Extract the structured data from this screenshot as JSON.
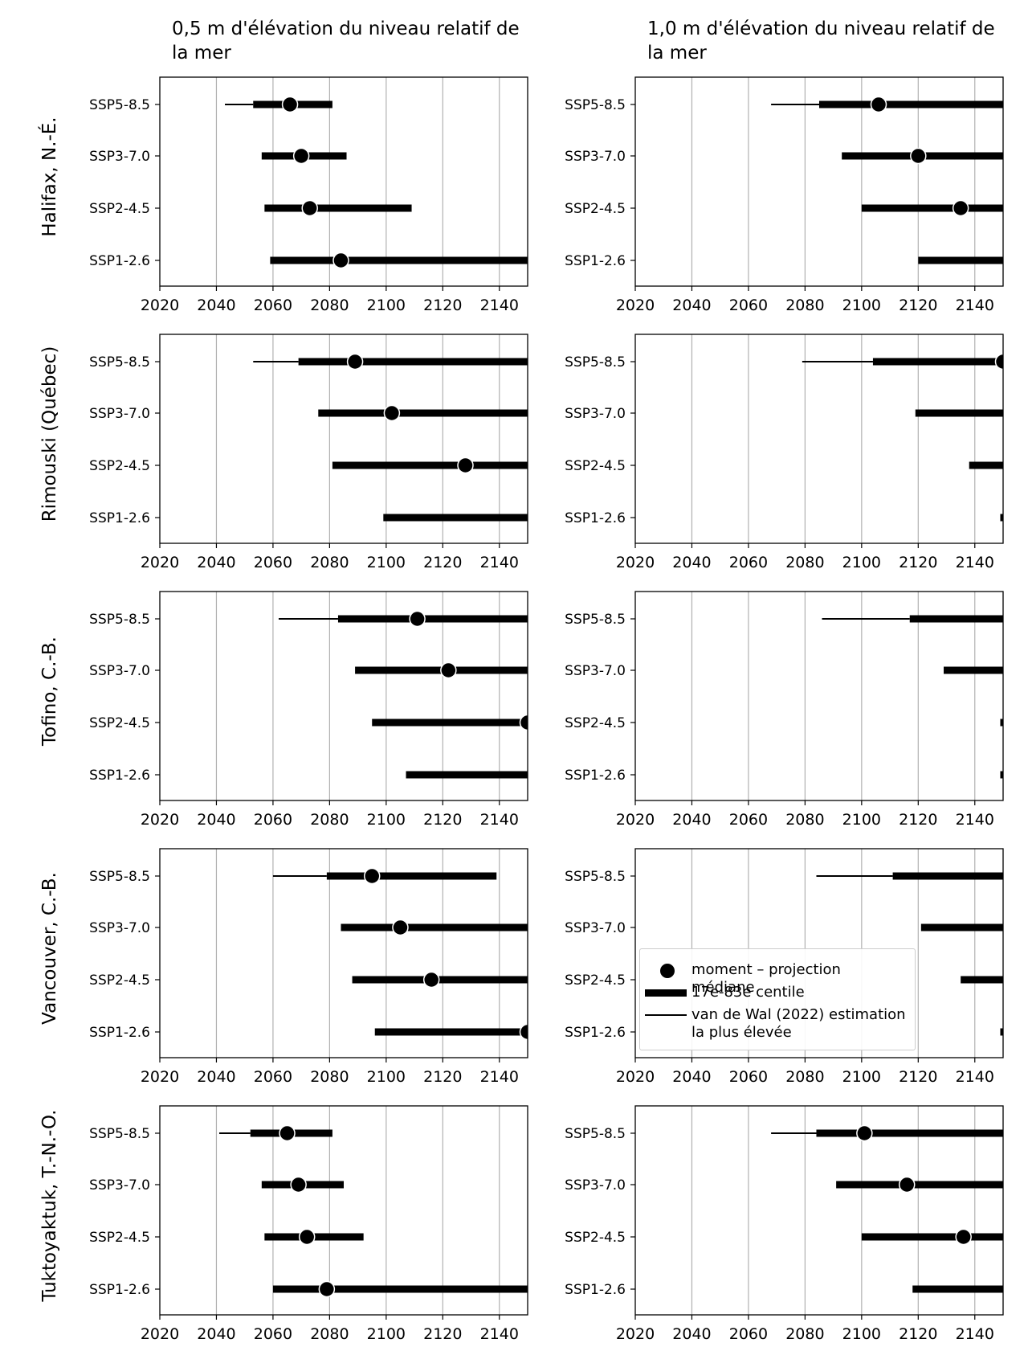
{
  "column_titles": [
    "0,5 m d'élévation du niveau relatif de la mer",
    "1,0 m d'élévation du niveau relatif de la mer"
  ],
  "row_titles": [
    "Halifax, N.-É.",
    "Rimouski (Québec)",
    "Tofino, C.-B.",
    "Vancouver, C.-B.",
    "Tuktoyaktuk, T.-N.-O."
  ],
  "legend": {
    "median": "moment – projection médiane",
    "likely": "17e-83e centile",
    "high": "van de Wal (2022) estimation la plus élevée"
  },
  "chart_data": {
    "type": "range-dot",
    "x_ticks": [
      "2020",
      "2040",
      "2060",
      "2080",
      "2100",
      "2120",
      "2140"
    ],
    "xlim": [
      2020,
      2150
    ],
    "scenarios": [
      "SSP5-8.5",
      "SSP3-7.0",
      "SSP2-4.5",
      "SSP1-2.6"
    ],
    "grid": "vertical",
    "legend_position": "inside (Vancouver, 1,0 m panel)",
    "panels": [
      {
        "location": "Halifax, N.-É.",
        "slr": "0,5 m",
        "scenarios": [
          {
            "scenario": "SSP5-8.5",
            "median": 2066,
            "p17": 2053,
            "p83": 2081,
            "high_est": 2043
          },
          {
            "scenario": "SSP3-7.0",
            "median": 2070,
            "p17": 2056,
            "p83": 2086
          },
          {
            "scenario": "SSP2-4.5",
            "median": 2073,
            "p17": 2057,
            "p83": 2109
          },
          {
            "scenario": "SSP1-2.6",
            "median": 2084,
            "p17": 2059,
            "p83": 2150
          }
        ]
      },
      {
        "location": "Halifax, N.-É.",
        "slr": "1,0 m",
        "scenarios": [
          {
            "scenario": "SSP5-8.5",
            "median": 2106,
            "p17": 2085,
            "p83": 2150,
            "high_est": 2068
          },
          {
            "scenario": "SSP3-7.0",
            "median": 2120,
            "p17": 2093,
            "p83": 2150
          },
          {
            "scenario": "SSP2-4.5",
            "median": 2135,
            "p17": 2100,
            "p83": 2150
          },
          {
            "scenario": "SSP1-2.6",
            "median": null,
            "p17": 2120,
            "p83": 2150
          }
        ]
      },
      {
        "location": "Rimouski (Québec)",
        "slr": "0,5 m",
        "scenarios": [
          {
            "scenario": "SSP5-8.5",
            "median": 2089,
            "p17": 2069,
            "p83": 2150,
            "high_est": 2053
          },
          {
            "scenario": "SSP3-7.0",
            "median": 2102,
            "p17": 2076,
            "p83": 2150
          },
          {
            "scenario": "SSP2-4.5",
            "median": 2128,
            "p17": 2081,
            "p83": 2150
          },
          {
            "scenario": "SSP1-2.6",
            "median": null,
            "p17": 2099,
            "p83": 2150
          }
        ]
      },
      {
        "location": "Rimouski (Québec)",
        "slr": "1,0 m",
        "scenarios": [
          {
            "scenario": "SSP5-8.5",
            "median": 2150,
            "p17": 2104,
            "p83": 2150,
            "high_est": 2079
          },
          {
            "scenario": "SSP3-7.0",
            "median": null,
            "p17": 2119,
            "p83": 2150
          },
          {
            "scenario": "SSP2-4.5",
            "median": null,
            "p17": 2138,
            "p83": 2150
          },
          {
            "scenario": "SSP1-2.6",
            "median": null,
            "p17": 2149,
            "p83": 2150
          }
        ]
      },
      {
        "location": "Tofino, C.-B.",
        "slr": "0,5 m",
        "scenarios": [
          {
            "scenario": "SSP5-8.5",
            "median": 2111,
            "p17": 2083,
            "p83": 2150,
            "high_est": 2062
          },
          {
            "scenario": "SSP3-7.0",
            "median": 2122,
            "p17": 2089,
            "p83": 2150
          },
          {
            "scenario": "SSP2-4.5",
            "median": 2150,
            "p17": 2095,
            "p83": 2150
          },
          {
            "scenario": "SSP1-2.6",
            "median": null,
            "p17": 2107,
            "p83": 2150
          }
        ]
      },
      {
        "location": "Tofino, C.-B.",
        "slr": "1,0 m",
        "scenarios": [
          {
            "scenario": "SSP5-8.5",
            "median": null,
            "p17": 2117,
            "p83": 2150,
            "high_est": 2086
          },
          {
            "scenario": "SSP3-7.0",
            "median": null,
            "p17": 2129,
            "p83": 2150
          },
          {
            "scenario": "SSP2-4.5",
            "median": null,
            "p17": 2149,
            "p83": 2150
          },
          {
            "scenario": "SSP1-2.6",
            "median": null,
            "p17": 2149,
            "p83": 2150
          }
        ]
      },
      {
        "location": "Vancouver, C.-B.",
        "slr": "0,5 m",
        "scenarios": [
          {
            "scenario": "SSP5-8.5",
            "median": 2095,
            "p17": 2079,
            "p83": 2139,
            "high_est": 2060
          },
          {
            "scenario": "SSP3-7.0",
            "median": 2105,
            "p17": 2084,
            "p83": 2150
          },
          {
            "scenario": "SSP2-4.5",
            "median": 2116,
            "p17": 2088,
            "p83": 2150
          },
          {
            "scenario": "SSP1-2.6",
            "median": 2150,
            "p17": 2096,
            "p83": 2150
          }
        ]
      },
      {
        "location": "Vancouver, C.-B.",
        "slr": "1,0 m",
        "scenarios": [
          {
            "scenario": "SSP5-8.5",
            "median": null,
            "p17": 2111,
            "p83": 2150,
            "high_est": 2084
          },
          {
            "scenario": "SSP3-7.0",
            "median": null,
            "p17": 2121,
            "p83": 2150
          },
          {
            "scenario": "SSP2-4.5",
            "median": null,
            "p17": 2135,
            "p83": 2150
          },
          {
            "scenario": "SSP1-2.6",
            "median": null,
            "p17": 2149,
            "p83": 2150
          }
        ]
      },
      {
        "location": "Tuktoyaktuk, T.-N.-O.",
        "slr": "0,5 m",
        "scenarios": [
          {
            "scenario": "SSP5-8.5",
            "median": 2065,
            "p17": 2052,
            "p83": 2081,
            "high_est": 2041
          },
          {
            "scenario": "SSP3-7.0",
            "median": 2069,
            "p17": 2056,
            "p83": 2085
          },
          {
            "scenario": "SSP2-4.5",
            "median": 2072,
            "p17": 2057,
            "p83": 2092
          },
          {
            "scenario": "SSP1-2.6",
            "median": 2079,
            "p17": 2060,
            "p83": 2150
          }
        ]
      },
      {
        "location": "Tuktoyaktuk, T.-N.-O.",
        "slr": "1,0 m",
        "scenarios": [
          {
            "scenario": "SSP5-8.5",
            "median": 2101,
            "p17": 2084,
            "p83": 2150,
            "high_est": 2068
          },
          {
            "scenario": "SSP3-7.0",
            "median": 2116,
            "p17": 2091,
            "p83": 2150
          },
          {
            "scenario": "SSP2-4.5",
            "median": 2136,
            "p17": 2100,
            "p83": 2150
          },
          {
            "scenario": "SSP1-2.6",
            "median": null,
            "p17": 2118,
            "p83": 2150
          }
        ]
      }
    ]
  }
}
